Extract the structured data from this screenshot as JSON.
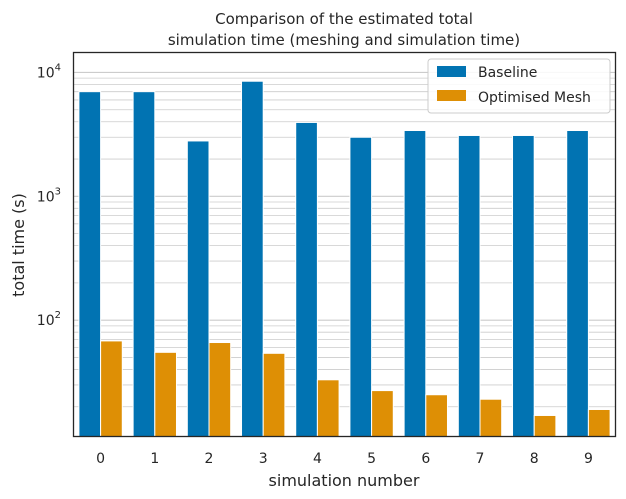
{
  "chart_data": {
    "type": "bar",
    "title_lines": [
      "Comparison of the estimated total",
      "simulation time (meshing and simulation time)"
    ],
    "xlabel": "simulation number",
    "ylabel": "total time (s)",
    "yscale": "log",
    "ylim": [
      11.5,
      14500
    ],
    "y_major_ticks": [
      {
        "value": 100,
        "base": "10",
        "exp": "2"
      },
      {
        "value": 1000,
        "base": "10",
        "exp": "3"
      },
      {
        "value": 10000,
        "base": "10",
        "exp": "4"
      }
    ],
    "grid": true,
    "legend_position": "top-right",
    "categories": [
      "0",
      "1",
      "2",
      "3",
      "4",
      "5",
      "6",
      "7",
      "8",
      "9"
    ],
    "series": [
      {
        "name": "Baseline",
        "color": "#0173b2",
        "values": [
          7000,
          7000,
          2800,
          8500,
          3950,
          3000,
          3400,
          3100,
          3100,
          3400
        ]
      },
      {
        "name": "Optimised Mesh",
        "color": "#de8f05",
        "values": [
          68,
          55,
          66,
          54,
          33,
          27,
          25,
          23,
          17,
          19
        ]
      }
    ]
  }
}
